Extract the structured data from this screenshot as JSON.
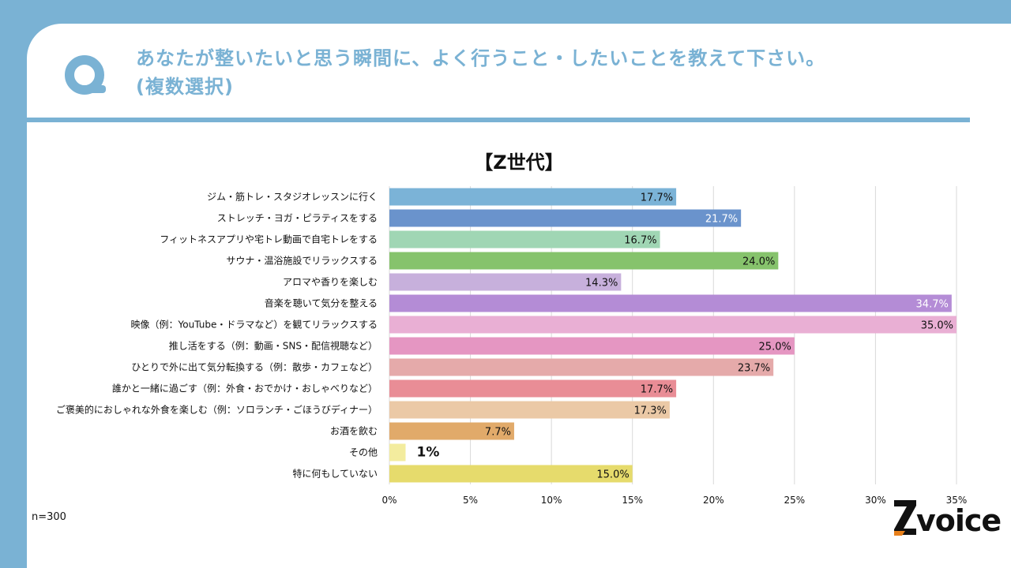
{
  "question": {
    "line1": "あなたが整いたいと思う瞬間に、よく行うこと・したいことを教えて下さい。",
    "line2": "(複数選択)"
  },
  "sample_size": "n=300",
  "logo_text": "voice",
  "colors": {
    "frame": "#7ab2d4",
    "accent": "#7ab2d4"
  },
  "chart_data": {
    "type": "bar",
    "orientation": "horizontal",
    "title": "【Z世代】",
    "xlim": [
      0,
      35
    ],
    "x_ticks": [
      "0%",
      "5%",
      "10%",
      "15%",
      "20%",
      "25%",
      "30%",
      "35%"
    ],
    "grid": true,
    "categories": [
      "ジム・筋トレ・スタジオレッスンに行く",
      "ストレッチ・ヨガ・ピラティスをする",
      "フィットネスアプリや宅トレ動画で自宅トレをする",
      "サウナ・温浴施設でリラックスする",
      "アロマや香りを楽しむ",
      "音楽を聴いて気分を整える",
      "映像（例：YouTube・ドラマなど）を観てリラックスする",
      "推し活をする（例：動画・SNS・配信視聴など）",
      "ひとりで外に出て気分転換する（例：散歩・カフェなど）",
      "誰かと一緒に過ごす（例：外食・おでかけ・おしゃべりなど）",
      "ご褒美的におしゃれな外食を楽しむ（例：ソロランチ・ごほうびディナー）",
      "お酒を飲む",
      "その他",
      "特に何もしていない"
    ],
    "values": [
      17.7,
      21.7,
      16.7,
      24.0,
      14.3,
      34.7,
      35.0,
      25.0,
      23.7,
      17.7,
      17.3,
      7.7,
      1,
      15.0
    ],
    "value_labels": [
      "17.7%",
      "21.7%",
      "16.7%",
      "24.0%",
      "14.3%",
      "34.7%",
      "35.0%",
      "25.0%",
      "23.7%",
      "17.7%",
      "17.3%",
      "7.7%",
      "1%",
      "15.0%"
    ],
    "bar_colors": [
      "#7bb3d7",
      "#6a93cc",
      "#a0d6b4",
      "#86c36c",
      "#c7b0dc",
      "#b48cd6",
      "#e9afd4",
      "#e596c2",
      "#e5aaaa",
      "#e98d96",
      "#ebc9a6",
      "#e1aa6a",
      "#f3ec9e",
      "#e6db6c"
    ]
  }
}
